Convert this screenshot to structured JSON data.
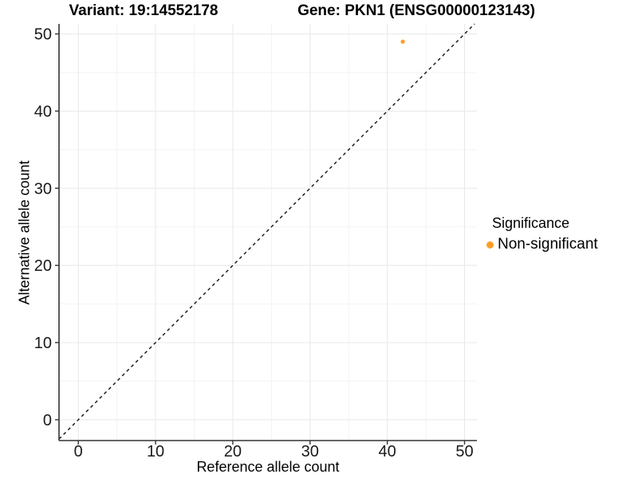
{
  "header": {
    "title_variant": "Variant: 19:14552178",
    "title_gene": "Gene: PKN1 (ENSG00000123143)"
  },
  "axes": {
    "x_title": "Reference allele count",
    "y_title": "Alternative allele count"
  },
  "legend": {
    "title": "Significance",
    "items": [
      {
        "label": "Non-significant",
        "color": "#FF9E26"
      }
    ]
  },
  "colors": {
    "point": "#FF9E26",
    "grid_major": "#E8E8E8",
    "grid_minor": "#F3F3F3",
    "axis": "#333333",
    "reference_line": "#111111",
    "background": "#FFFFFF"
  },
  "chart_data": {
    "type": "scatter",
    "title": "Variant: 19:14552178    Gene: PKN1 (ENSG00000123143)",
    "xlabel": "Reference allele count",
    "ylabel": "Alternative allele count",
    "xlim": [
      -2.5,
      51.6
    ],
    "ylim": [
      -2.7,
      51.3
    ],
    "x_ticks": [
      0,
      10,
      20,
      30,
      40,
      50
    ],
    "y_ticks": [
      0,
      10,
      20,
      30,
      40,
      50
    ],
    "x_minor_ticks": [
      5,
      15,
      25,
      35,
      45
    ],
    "y_minor_ticks": [
      5,
      15,
      25,
      35,
      45
    ],
    "grid": true,
    "reference_line": {
      "type": "identity",
      "style": "dashed",
      "color": "#111111"
    },
    "series": [
      {
        "name": "Non-significant",
        "color": "#FF9E26",
        "points": [
          {
            "x": 42,
            "y": 49
          }
        ]
      }
    ],
    "legend_position": "right"
  }
}
